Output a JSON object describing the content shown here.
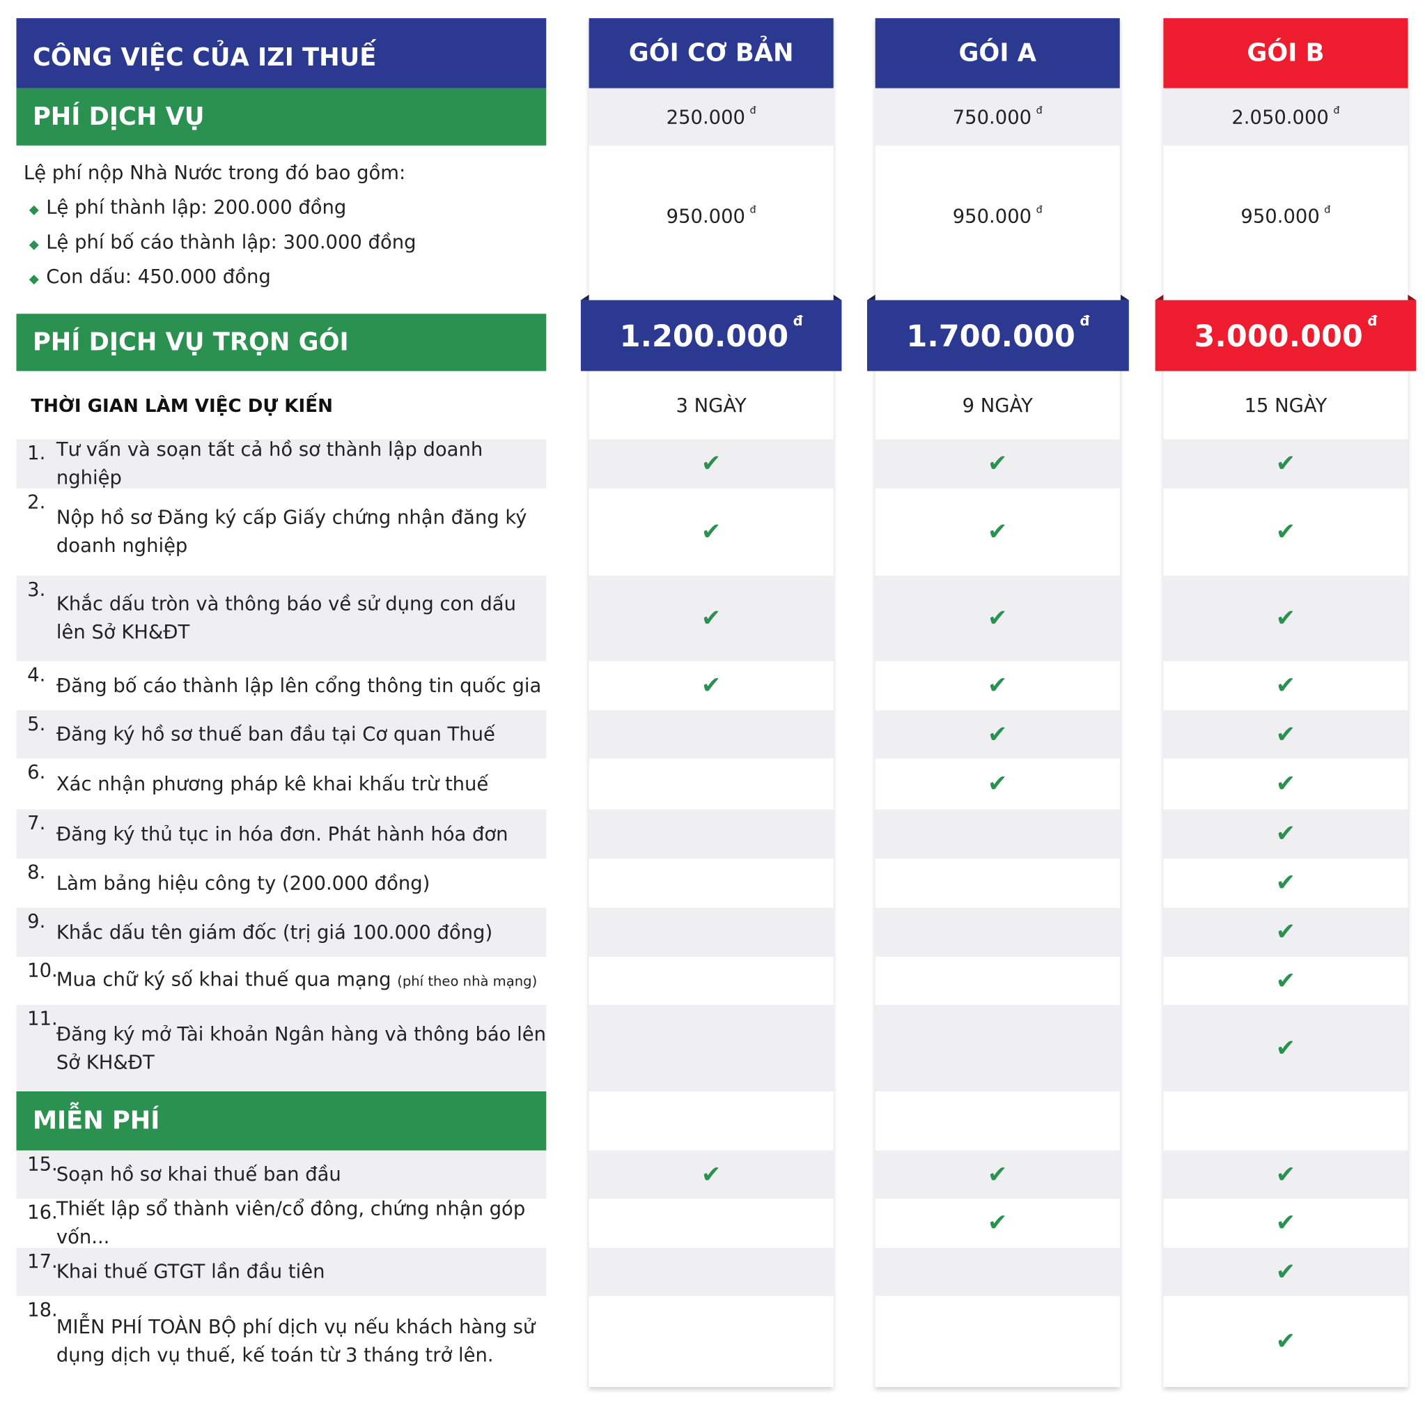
{
  "header": {
    "title": "CÔNG VIỆC CỦA IZI THUẾ"
  },
  "currency": "đ",
  "packages": [
    {
      "name": "GÓI CƠ BẢN",
      "color": "#2b3990",
      "service_fee": "250.000",
      "state_fee": "950.000",
      "total": "1.200.000",
      "duration": "3 NGÀY",
      "included": [
        1,
        2,
        3,
        4,
        15
      ]
    },
    {
      "name": "GÓI A",
      "color": "#2b3990",
      "service_fee": "750.000",
      "state_fee": "950.000",
      "total": "1.700.000",
      "duration": "9 NGÀY",
      "included": [
        1,
        2,
        3,
        4,
        5,
        6,
        15,
        16
      ]
    },
    {
      "name": "GÓI B",
      "color": "#ed1c2e",
      "service_fee": "2.050.000",
      "state_fee": "950.000",
      "total": "3.000.000",
      "duration": "15 NGÀY",
      "included": [
        1,
        2,
        3,
        4,
        5,
        6,
        7,
        8,
        9,
        10,
        11,
        15,
        16,
        17,
        18
      ]
    }
  ],
  "sections": {
    "service_fee": "PHÍ DỊCH VỤ",
    "state_fee_intro": "Lệ phí nộp Nhà Nước trong đó bao gồm:",
    "state_fee_items": [
      "Lệ phí thành lập: 200.000 đồng",
      "Lệ phí bố cáo thành lập: 300.000 đồng",
      "Con dấu: 450.000 đồng"
    ],
    "package_fee": "PHÍ DỊCH VỤ TRỌN GÓI",
    "duration": "THỜI GIAN LÀM VIỆC DỰ KIẾN",
    "free": "MIỄN PHÍ"
  },
  "tasks": [
    {
      "id": 1,
      "num": "1.",
      "text": "Tư vấn và soạn tất cả hồ sơ thành lập doanh nghiệp"
    },
    {
      "id": 2,
      "num": "2.",
      "text": "Nộp hồ sơ Đăng ký cấp Giấy chứng nhận đăng ký doanh nghiệp"
    },
    {
      "id": 3,
      "num": "3.",
      "text": "Khắc dấu tròn và thông báo về sử dụng con dấu lên Sở KH&ĐT"
    },
    {
      "id": 4,
      "num": "4.",
      "text": "Đăng bố cáo thành lập lên cổng thông tin quốc gia"
    },
    {
      "id": 5,
      "num": "5.",
      "text": "Đăng ký hồ sơ thuế ban đầu tại Cơ quan Thuế"
    },
    {
      "id": 6,
      "num": "6.",
      "text": "Xác nhận phương pháp kê khai khấu trừ thuế"
    },
    {
      "id": 7,
      "num": "7.",
      "text": "Đăng ký thủ tục in hóa đơn. Phát hành hóa đơn"
    },
    {
      "id": 8,
      "num": "8.",
      "text": "Làm bảng hiệu công ty (200.000 đồng)"
    },
    {
      "id": 9,
      "num": "9.",
      "text": "Khắc dấu tên giám đốc (trị giá 100.000 đồng)"
    },
    {
      "id": 10,
      "num": "10.",
      "text": "Mua chữ ký số khai thuế qua mạng",
      "note": "(phí theo nhà mạng)"
    },
    {
      "id": 11,
      "num": "11.",
      "text": "Đăng ký mở Tài khoản Ngân hàng và thông báo lên Sở KH&ĐT"
    }
  ],
  "free_tasks": [
    {
      "id": 15,
      "num": "15.",
      "text": "Soạn hồ sơ khai thuế ban đầu"
    },
    {
      "id": 16,
      "num": "16.",
      "text": "Thiết lập sổ thành viên/cổ đông, chứng nhận góp vốn..."
    },
    {
      "id": 17,
      "num": "17.",
      "text": "Khai thuế GTGT lần đầu tiên"
    },
    {
      "id": 18,
      "num": "18.",
      "text": "MIỄN PHÍ TOÀN BỘ phí dịch vụ nếu khách hàng sử dụng dịch vụ thuế, kế toán từ 3 tháng trở lên."
    }
  ],
  "icons": {
    "check": "check-icon",
    "bullet": "diamond-bullet-icon"
  }
}
